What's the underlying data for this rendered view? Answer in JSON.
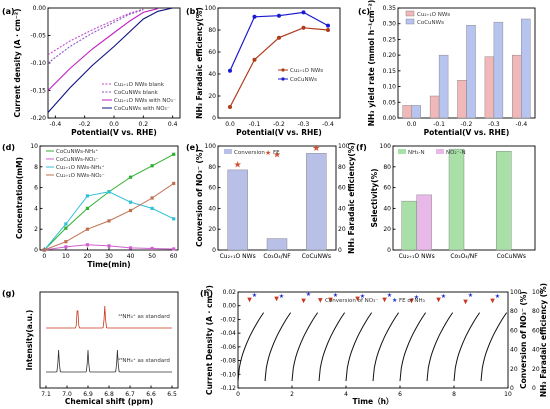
{
  "chart_data": [
    {
      "panel": "(a)",
      "type": "line",
      "xlabel": "Potential(V vs. RHE)",
      "ylabel": "Current density (A · cm⁻²)",
      "xlim": [
        -0.45,
        0.45
      ],
      "ylim": [
        -0.2,
        0.0
      ],
      "xticks": [
        "-0.4",
        "-0.2",
        "0.0",
        "0.2",
        "0.4"
      ],
      "yticks": [
        "0.00",
        "-0.05",
        "-0.10",
        "-0.15",
        "-0.20"
      ],
      "series": [
        {
          "name": "Cu₂₊₁O NWs blank",
          "color": "#c84bc8",
          "dash": "2,1.5",
          "x": [
            -0.45,
            -0.3,
            -0.15,
            0,
            0.1,
            0.2
          ],
          "y": [
            -0.085,
            -0.06,
            -0.04,
            -0.022,
            -0.01,
            -0.002
          ]
        },
        {
          "name": "CoCuNWs blank",
          "color": "#8a55c8",
          "dash": "2,1.5",
          "x": [
            -0.45,
            -0.3,
            -0.15,
            0,
            0.1,
            0.2
          ],
          "y": [
            -0.1,
            -0.07,
            -0.046,
            -0.026,
            -0.012,
            -0.003
          ]
        },
        {
          "name": "Cu₂₊₁O NWs with NO₃⁻",
          "color": "#c020c0",
          "dash": "",
          "x": [
            -0.45,
            -0.3,
            -0.15,
            0,
            0.1,
            0.2,
            0.3
          ],
          "y": [
            -0.15,
            -0.11,
            -0.075,
            -0.045,
            -0.025,
            -0.008,
            -0.001
          ]
        },
        {
          "name": "CoCuNWs with NO₃⁻",
          "color": "#101080",
          "dash": "",
          "x": [
            -0.45,
            -0.3,
            -0.15,
            0,
            0.1,
            0.2,
            0.3,
            0.4
          ],
          "y": [
            -0.19,
            -0.145,
            -0.105,
            -0.07,
            -0.045,
            -0.02,
            -0.006,
            0
          ]
        }
      ]
    },
    {
      "panel": "(b)",
      "type": "line",
      "xlabel": "Potential(V vs. RHE)",
      "ylabel": "NH₃ Faradaic efficiency(%)",
      "categories": [
        "0.0",
        "-0.1",
        "-0.2",
        "-0.3",
        "-0.4"
      ],
      "ylim": [
        0,
        100
      ],
      "yticks": [
        "0",
        "20",
        "40",
        "60",
        "80",
        "100"
      ],
      "series": [
        {
          "name": "Cu₂₊₁O NWs",
          "color": "#b03a1a",
          "values": [
            10,
            53,
            73,
            82,
            80
          ]
        },
        {
          "name": "CoCuNWs",
          "color": "#1a1ad0",
          "values": [
            43,
            92,
            93,
            96,
            84
          ]
        }
      ]
    },
    {
      "panel": "(c)",
      "type": "bar",
      "xlabel": "Potential(V vs. RHE)",
      "ylabel": "NH₃ yield rate (mmol h⁻¹cm⁻²)",
      "categories": [
        "0.0",
        "-0.1",
        "-0.2",
        "-0.3",
        "-0.4"
      ],
      "ylim": [
        0,
        0.35
      ],
      "yticks": [
        "0.00",
        "0.05",
        "0.10",
        "0.15",
        "0.20",
        "0.25",
        "0.30",
        "0.35"
      ],
      "series": [
        {
          "name": "Cu₂₊₁O NWs",
          "color": "#f0b8b8",
          "values": [
            0.04,
            0.07,
            0.12,
            0.195,
            0.2
          ]
        },
        {
          "name": "CoCuNWs",
          "color": "#b8c4f0",
          "values": [
            0.04,
            0.2,
            0.295,
            0.305,
            0.315
          ]
        }
      ]
    },
    {
      "panel": "(d)",
      "type": "line",
      "xlabel": "Time(min)",
      "ylabel": "Concentration(mM)",
      "x": [
        0,
        10,
        20,
        30,
        40,
        50,
        60
      ],
      "xlim": [
        -2,
        62
      ],
      "ylim": [
        0,
        10
      ],
      "xticks": [
        "0",
        "10",
        "20",
        "30",
        "40",
        "50",
        "60"
      ],
      "yticks": [
        "0",
        "2",
        "4",
        "6",
        "8",
        "10"
      ],
      "series": [
        {
          "name": "CoCuNWs-NH₄⁺",
          "color": "#30b030",
          "values": [
            0,
            2.1,
            4,
            5.6,
            7,
            8.1,
            9.2
          ]
        },
        {
          "name": "CoCuNWs-NO₃⁻",
          "color": "#d060d0",
          "values": [
            0,
            0.3,
            0.5,
            0.4,
            0.2,
            0.15,
            0.1
          ]
        },
        {
          "name": "Cu₂₊₁O NWs-NH₄⁺",
          "color": "#30c0d8",
          "values": [
            0,
            2.5,
            5.2,
            5.6,
            4.6,
            4,
            3
          ]
        },
        {
          "name": "Cu₂₊₁O NWs-NO₂⁻",
          "color": "#c07050",
          "values": [
            0,
            0.8,
            2,
            2.8,
            3.8,
            5,
            6.4
          ]
        }
      ]
    },
    {
      "panel": "(e)",
      "type": "bar",
      "ylabel": "Conversion of NO₃⁻ (%)",
      "ylabel2": "NH₃ Faradaic efficiency(%)",
      "categories": [
        "Cu₂₊₁O NWs",
        "Co₃O₄/NF",
        "CoCuNWs"
      ],
      "ylim": [
        0,
        100
      ],
      "yticks": [
        "0",
        "20",
        "40",
        "60",
        "80",
        "100"
      ],
      "legend": [
        "Conversion",
        "FE"
      ],
      "conversion": [
        77,
        11,
        93
      ],
      "fe": [
        82,
        92,
        98
      ],
      "bar_color": "#b8c0e8"
    },
    {
      "panel": "(f)",
      "type": "bar",
      "ylabel": "Selectivity(%)",
      "categories": [
        "Cu₂₊₁O NWs",
        "Co₃O₄/NF",
        "CoCuNWs"
      ],
      "ylim": [
        0,
        100
      ],
      "yticks": [
        "0",
        "20",
        "40",
        "60",
        "80",
        "100"
      ],
      "series": [
        {
          "name": "NH₃-N",
          "color": "#a8e0a8",
          "values": [
            47,
            97,
            95
          ]
        },
        {
          "name": "NO₂⁻-N",
          "color": "#e8b8e8",
          "values": [
            53,
            0,
            0
          ]
        }
      ]
    },
    {
      "panel": "(g)",
      "type": "line",
      "xlabel": "Chemical shift (ppm)",
      "ylabel": "Intensity(a.u.)",
      "xticks": [
        "7.1",
        "7.0",
        "6.9",
        "6.8",
        "6.7",
        "6.6",
        "6.5"
      ],
      "labels": [
        "¹⁴NH₄⁺ as standard",
        "¹⁵NH₄⁺ as standard"
      ]
    },
    {
      "panel": "(h)",
      "type": "line",
      "xlabel": "Time（h）",
      "ylabel": "Current Density (A · cm⁻²)",
      "ylabel2": "Conversion of NO₃⁻ (%)",
      "ylabel3": "NH₃ Faradaic efficiency (%)",
      "xlim": [
        0,
        10
      ],
      "ylim": [
        -0.12,
        0.02
      ],
      "xticks": [
        "0",
        "2",
        "4",
        "6",
        "8",
        "10"
      ],
      "yticks": [
        "0.02",
        "0.00",
        "-0.02",
        "-0.04",
        "-0.06",
        "-0.08",
        "-0.10",
        "-0.12"
      ],
      "y2ticks": [
        "0",
        "20",
        "40",
        "60",
        "80",
        "100"
      ],
      "legend": [
        "Conversion of NO₃⁻",
        "FE of NH₃"
      ],
      "conversion": [
        92,
        93,
        91,
        92,
        93,
        92,
        91,
        92,
        90,
        91
      ],
      "fe": [
        97,
        96,
        98,
        97,
        96,
        97,
        95,
        96,
        97,
        96
      ]
    }
  ],
  "panel_labels": [
    "(a)",
    "(b)",
    "(c)",
    "(d)",
    "(e)",
    "(f)",
    "(g)",
    "(h)"
  ]
}
